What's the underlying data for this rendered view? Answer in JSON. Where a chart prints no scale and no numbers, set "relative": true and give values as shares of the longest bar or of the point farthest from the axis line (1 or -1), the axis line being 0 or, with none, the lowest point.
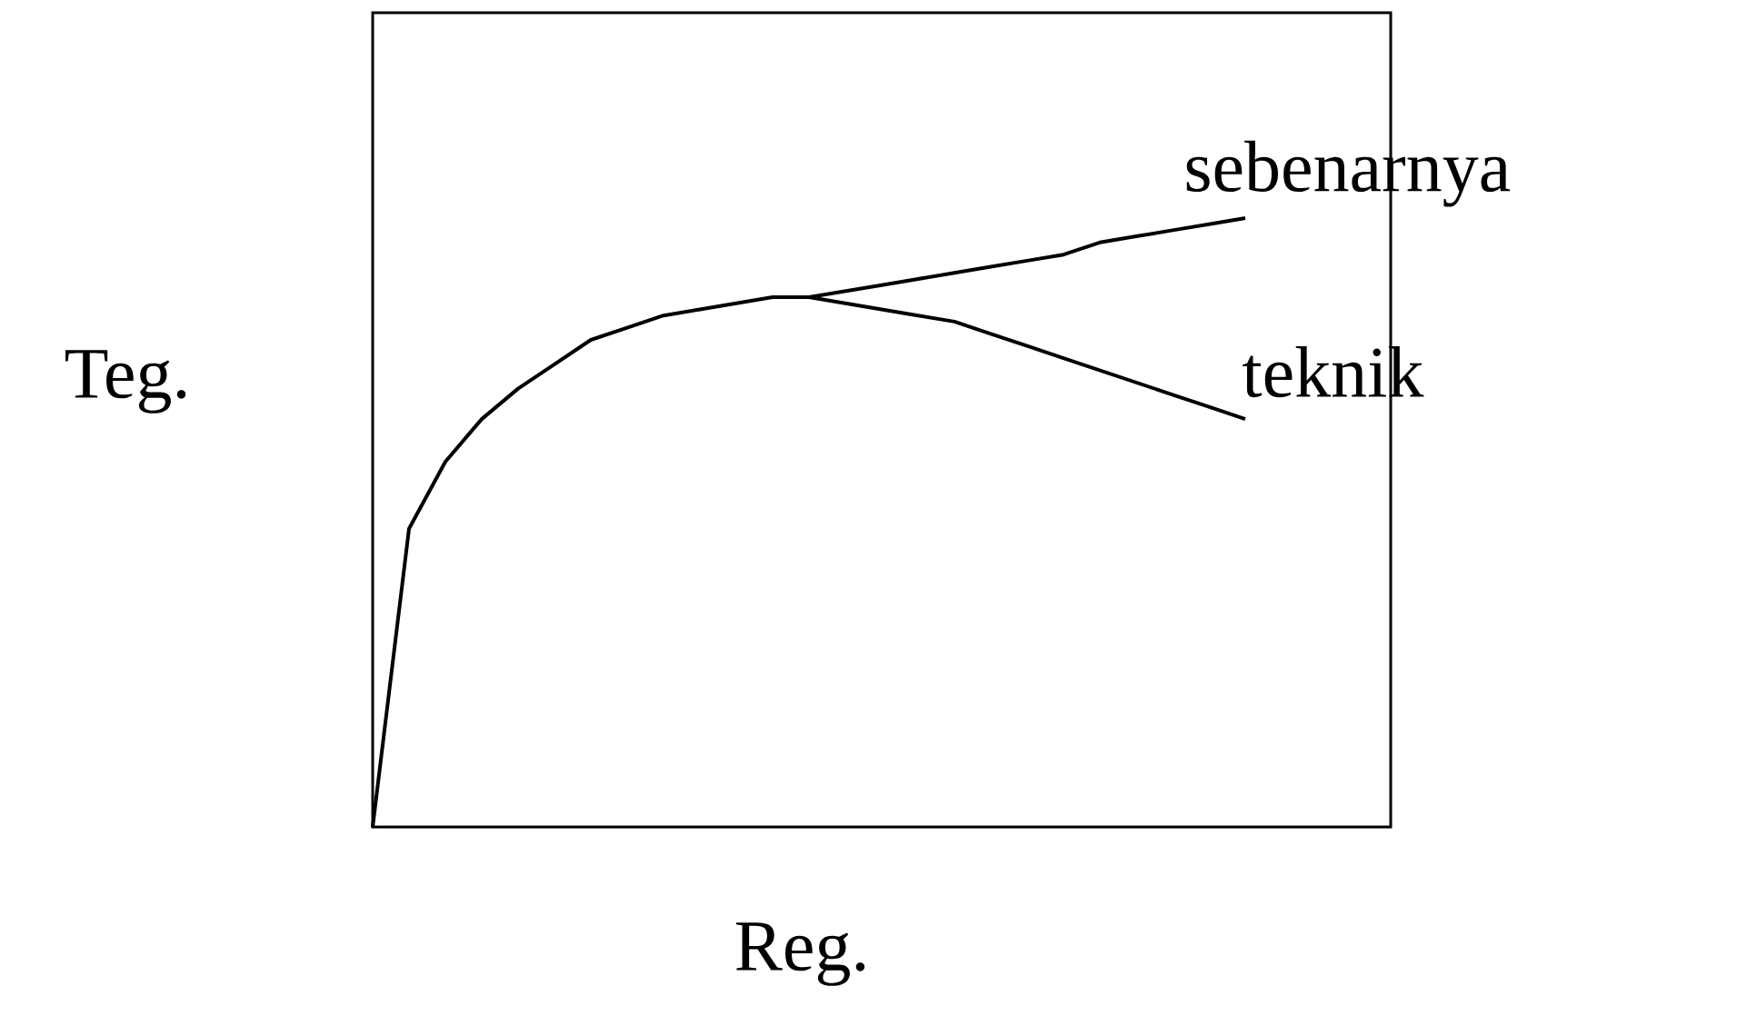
{
  "chart_data": {
    "type": "line",
    "relative": true,
    "xlabel": "Reg.",
    "ylabel": "Teg.",
    "categories": [
      null,
      null,
      null,
      null,
      null,
      null,
      null,
      null,
      null,
      null,
      null,
      null,
      null,
      null,
      null,
      null,
      null,
      null,
      null,
      null,
      null,
      null,
      null,
      null,
      null
    ],
    "series": [
      {
        "name": "sebenarnya",
        "color": "#000000",
        "values": [
          null,
          null,
          null,
          null,
          null,
          null,
          null,
          null,
          null,
          null,
          null,
          null,
          0.87,
          0.88,
          0.89,
          0.9,
          0.91,
          0.92,
          0.93,
          0.94,
          0.96,
          0.97,
          0.98,
          0.99,
          1.0
        ]
      },
      {
        "name": "teknik",
        "color": "#000000",
        "values": [
          0,
          0.49,
          0.6,
          0.67,
          0.72,
          0.76,
          0.8,
          0.82,
          0.84,
          0.85,
          0.86,
          0.87,
          0.87,
          0.86,
          0.85,
          0.84,
          0.83,
          0.81,
          0.79,
          0.77,
          0.75,
          0.73,
          0.71,
          0.69,
          0.67
        ]
      }
    ]
  }
}
